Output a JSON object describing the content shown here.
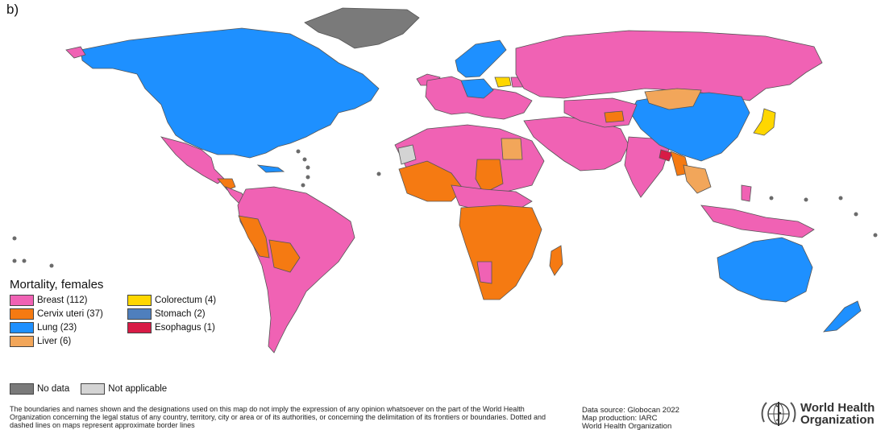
{
  "panel_label": "b)",
  "legend": {
    "title": "Mortality, females",
    "items": [
      {
        "label": "Breast (112)",
        "color": "#f062b4"
      },
      {
        "label": "Colorectum (4)",
        "color": "#ffd700"
      },
      {
        "label": "Cervix uteri (37)",
        "color": "#f57a12"
      },
      {
        "label": "Stomach (2)",
        "color": "#4f7fbd"
      },
      {
        "label": "Lung (23)",
        "color": "#1e90ff"
      },
      {
        "label": "Esophagus (1)",
        "color": "#d81b46"
      },
      {
        "label": "Liver (6)",
        "color": "#f2a65a"
      }
    ],
    "extra": [
      {
        "label": "No data",
        "color": "#7a7a7a"
      },
      {
        "label": "Not applicable",
        "color": "#d4d4d4"
      }
    ]
  },
  "disclaimer": "The boundaries and names shown and the designations used on this map do not imply the expression of any opinion whatsoever on the part of the World Health Organization concerning the legal status of any country, territory, city or area or of its authorities, or concerning the delimitation of its frontiers or boundaries. Dotted and dashed lines on maps represent approximate border lines",
  "source": {
    "line1": "Data source: Globocan 2022",
    "line2": "Map production: IARC",
    "line3": "World Health Organization"
  },
  "logo": {
    "line1": "World Health",
    "line2": "Organization"
  }
}
